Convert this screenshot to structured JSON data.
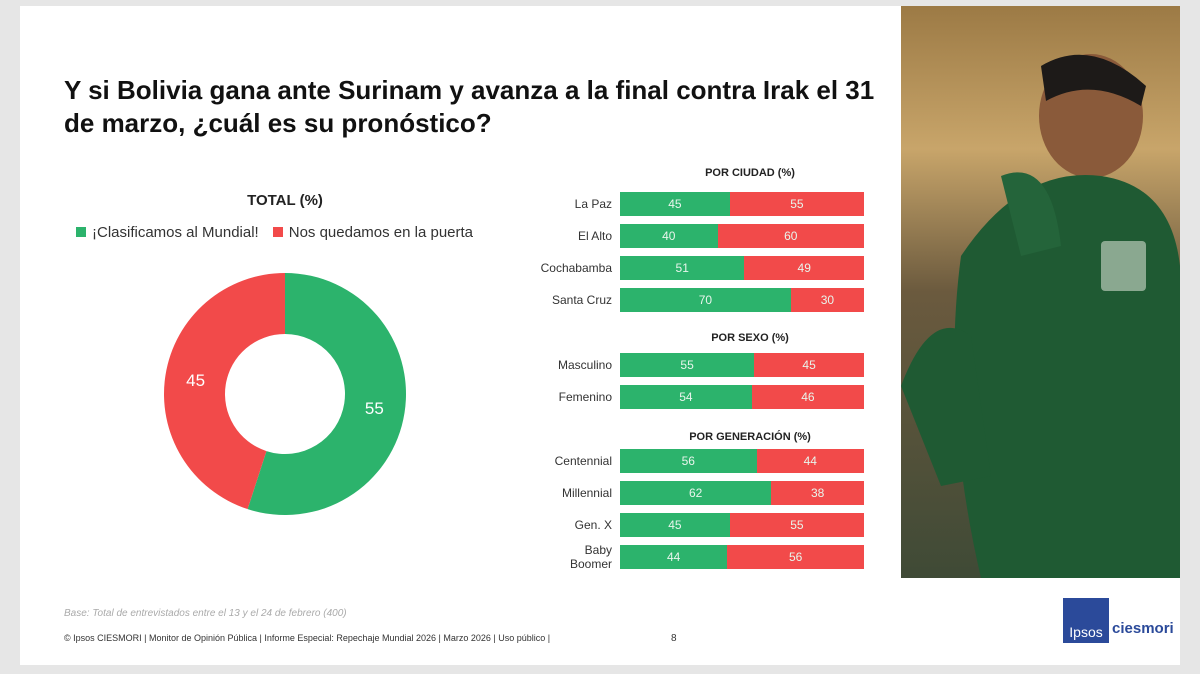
{
  "title": "Y si Bolivia gana ante Surinam y avanza a la final contra Irak el 31 de marzo, ¿cuál es su pronóstico?",
  "chart_data": {
    "type": "pie",
    "title": "TOTAL (%)",
    "legend": [
      "¡Clasificamos al Mundial!",
      "Nos quedamos en la puerta"
    ],
    "colors": [
      "#2cb36c",
      "#f24a4a"
    ],
    "total": [
      55,
      45
    ],
    "groups": [
      {
        "title": "POR CIUDAD (%)",
        "rows": [
          {
            "label": "La Paz",
            "values": [
              45,
              55
            ]
          },
          {
            "label": "El Alto",
            "values": [
              40,
              60
            ]
          },
          {
            "label": "Cochabamba",
            "values": [
              51,
              49
            ]
          },
          {
            "label": "Santa Cruz",
            "values": [
              70,
              30
            ]
          }
        ]
      },
      {
        "title": "POR SEXO (%)",
        "rows": [
          {
            "label": "Masculino",
            "values": [
              55,
              45
            ]
          },
          {
            "label": "Femenino",
            "values": [
              54,
              46
            ]
          }
        ]
      },
      {
        "title": "POR GENERACIÓN (%)",
        "rows": [
          {
            "label": "Centennial",
            "values": [
              56,
              44
            ]
          },
          {
            "label": "Millennial",
            "values": [
              62,
              38
            ]
          },
          {
            "label": "Gen. X",
            "values": [
              45,
              55
            ]
          },
          {
            "label": "Baby Boomer",
            "values": [
              44,
              56
            ]
          }
        ]
      }
    ]
  },
  "footer": {
    "base": "Base: Total de entrevistados entre el 13 y el 24 de febrero (400)",
    "credits": "© Ipsos CIESMORI | Monitor de Opinión Pública | Informe Especial: Repechaje Mundial 2026 | Marzo 2026 | Uso público |",
    "page": "8",
    "logo_box": "Ipsos",
    "logo_text": "ciesmori"
  }
}
